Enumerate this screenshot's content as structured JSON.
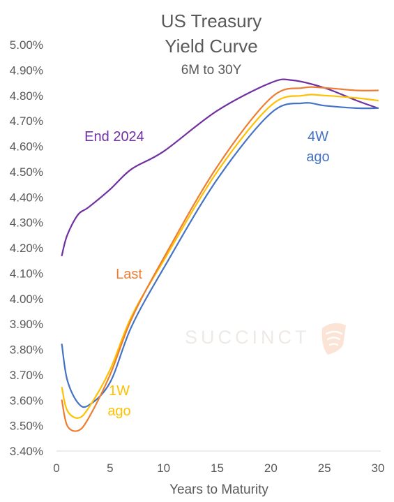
{
  "chart_data": {
    "type": "line",
    "title": [
      "US Treasury",
      "Yield Curve"
    ],
    "subtitle": "6M to 30Y",
    "xlabel": "Years to Maturity",
    "ylabel": "",
    "xlim": [
      0,
      30
    ],
    "ylim": [
      3.4,
      5.0
    ],
    "x_ticks": [
      "0",
      "5",
      "10",
      "15",
      "20",
      "25",
      "30"
    ],
    "y_ticks": [
      "3.40%",
      "3.50%",
      "3.60%",
      "3.70%",
      "3.80%",
      "3.90%",
      "4.00%",
      "4.10%",
      "4.20%",
      "4.30%",
      "4.40%",
      "4.50%",
      "4.60%",
      "4.70%",
      "4.80%",
      "4.90%",
      "5.00%"
    ],
    "grid": false,
    "legend": "inline labels",
    "watermark": "SUCCINCT",
    "series": [
      {
        "name": "End 2024",
        "label_lines": [
          "End 2024"
        ],
        "color": "#7030a0",
        "x": [
          0.5,
          1,
          2,
          3,
          5,
          7,
          10,
          15,
          20,
          22,
          25,
          28,
          30
        ],
        "y": [
          4.17,
          4.25,
          4.33,
          4.36,
          4.43,
          4.51,
          4.58,
          4.74,
          4.85,
          4.86,
          4.83,
          4.78,
          4.75
        ]
      },
      {
        "name": "Last",
        "label_lines": [
          "Last"
        ],
        "color": "#ed7d31",
        "x": [
          0.5,
          1,
          2,
          3,
          5,
          7,
          10,
          15,
          20,
          23,
          25,
          28,
          30
        ],
        "y": [
          3.6,
          3.5,
          3.48,
          3.53,
          3.7,
          3.92,
          4.16,
          4.52,
          4.79,
          4.83,
          4.83,
          4.82,
          4.82
        ]
      },
      {
        "name": "1W ago",
        "label_lines": [
          "1W",
          "ago"
        ],
        "color": "#ffc000",
        "x": [
          0.5,
          1,
          2,
          3,
          5,
          7,
          10,
          15,
          20,
          23,
          25,
          28,
          30
        ],
        "y": [
          3.65,
          3.56,
          3.53,
          3.57,
          3.72,
          3.93,
          4.15,
          4.5,
          4.76,
          4.8,
          4.8,
          4.79,
          4.78
        ]
      },
      {
        "name": "4W ago",
        "label_lines": [
          "4W",
          "ago"
        ],
        "color": "#4472c4",
        "x": [
          0.5,
          1,
          2,
          3,
          5,
          7,
          10,
          15,
          20,
          23,
          25,
          28,
          30
        ],
        "y": [
          3.82,
          3.68,
          3.59,
          3.58,
          3.67,
          3.89,
          4.12,
          4.47,
          4.73,
          4.77,
          4.76,
          4.75,
          4.75
        ]
      }
    ]
  }
}
